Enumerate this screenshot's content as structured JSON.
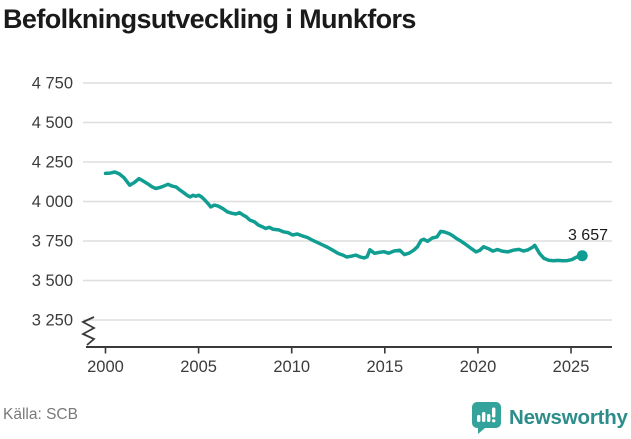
{
  "chart_data": {
    "type": "line",
    "title": "Befolkningsutveckling i Munkfors",
    "xlabel": "",
    "ylabel": "",
    "grid": true,
    "axis_break": true,
    "xlim": [
      1998.9,
      2027.2
    ],
    "ylim": [
      3250,
      4750
    ],
    "x_ticks": [
      2000,
      2005,
      2010,
      2015,
      2020,
      2025
    ],
    "y_ticks": [
      {
        "value": 4750,
        "label": "4 750"
      },
      {
        "value": 4500,
        "label": "4 500"
      },
      {
        "value": 4250,
        "label": "4 250"
      },
      {
        "value": 4000,
        "label": "4 000"
      },
      {
        "value": 3750,
        "label": "3 750"
      },
      {
        "value": 3500,
        "label": "3 500"
      },
      {
        "value": 3250,
        "label": "3 250"
      }
    ],
    "colors": {
      "line": "#119e92",
      "grid": "#dedede",
      "axis": "#3a3a3a",
      "tick_text": "#3c3c3c",
      "end_label_text": "#1a1a1a"
    },
    "series": [
      {
        "name": "Befolkning",
        "points": [
          [
            2000.0,
            4178
          ],
          [
            2000.25,
            4180
          ],
          [
            2000.5,
            4187
          ],
          [
            2000.75,
            4174
          ],
          [
            2001.0,
            4150
          ],
          [
            2001.3,
            4103
          ],
          [
            2001.55,
            4120
          ],
          [
            2001.8,
            4145
          ],
          [
            2002.0,
            4131
          ],
          [
            2002.25,
            4113
          ],
          [
            2002.5,
            4093
          ],
          [
            2002.7,
            4082
          ],
          [
            2002.9,
            4088
          ],
          [
            2003.1,
            4096
          ],
          [
            2003.35,
            4109
          ],
          [
            2003.6,
            4097
          ],
          [
            2003.8,
            4092
          ],
          [
            2004.0,
            4072
          ],
          [
            2004.2,
            4056
          ],
          [
            2004.4,
            4038
          ],
          [
            2004.55,
            4029
          ],
          [
            2004.7,
            4040
          ],
          [
            2004.85,
            4033
          ],
          [
            2005.0,
            4040
          ],
          [
            2005.15,
            4030
          ],
          [
            2005.3,
            4013
          ],
          [
            2005.5,
            3988
          ],
          [
            2005.65,
            3966
          ],
          [
            2005.85,
            3977
          ],
          [
            2006.05,
            3971
          ],
          [
            2006.3,
            3955
          ],
          [
            2006.55,
            3934
          ],
          [
            2006.8,
            3925
          ],
          [
            2007.0,
            3921
          ],
          [
            2007.2,
            3929
          ],
          [
            2007.4,
            3913
          ],
          [
            2007.55,
            3904
          ],
          [
            2007.75,
            3883
          ],
          [
            2008.0,
            3871
          ],
          [
            2008.2,
            3851
          ],
          [
            2008.4,
            3841
          ],
          [
            2008.6,
            3830
          ],
          [
            2008.8,
            3837
          ],
          [
            2009.0,
            3824
          ],
          [
            2009.3,
            3820
          ],
          [
            2009.55,
            3808
          ],
          [
            2009.8,
            3803
          ],
          [
            2010.05,
            3788
          ],
          [
            2010.3,
            3794
          ],
          [
            2010.6,
            3781
          ],
          [
            2010.85,
            3772
          ],
          [
            2011.1,
            3756
          ],
          [
            2011.4,
            3739
          ],
          [
            2011.7,
            3723
          ],
          [
            2011.95,
            3709
          ],
          [
            2012.2,
            3692
          ],
          [
            2012.5,
            3671
          ],
          [
            2012.75,
            3661
          ],
          [
            2012.95,
            3649
          ],
          [
            2013.2,
            3654
          ],
          [
            2013.45,
            3661
          ],
          [
            2013.7,
            3648
          ],
          [
            2013.9,
            3643
          ],
          [
            2014.05,
            3650
          ],
          [
            2014.2,
            3694
          ],
          [
            2014.45,
            3672
          ],
          [
            2014.7,
            3678
          ],
          [
            2014.95,
            3682
          ],
          [
            2015.2,
            3673
          ],
          [
            2015.5,
            3687
          ],
          [
            2015.8,
            3692
          ],
          [
            2016.05,
            3664
          ],
          [
            2016.3,
            3673
          ],
          [
            2016.55,
            3692
          ],
          [
            2016.75,
            3713
          ],
          [
            2016.95,
            3754
          ],
          [
            2017.1,
            3761
          ],
          [
            2017.3,
            3748
          ],
          [
            2017.55,
            3769
          ],
          [
            2017.8,
            3776
          ],
          [
            2018.0,
            3811
          ],
          [
            2018.2,
            3807
          ],
          [
            2018.45,
            3797
          ],
          [
            2018.65,
            3783
          ],
          [
            2018.85,
            3766
          ],
          [
            2019.1,
            3748
          ],
          [
            2019.4,
            3724
          ],
          [
            2019.65,
            3702
          ],
          [
            2019.9,
            3681
          ],
          [
            2020.1,
            3691
          ],
          [
            2020.3,
            3713
          ],
          [
            2020.55,
            3702
          ],
          [
            2020.8,
            3686
          ],
          [
            2021.05,
            3696
          ],
          [
            2021.3,
            3686
          ],
          [
            2021.6,
            3681
          ],
          [
            2021.9,
            3692
          ],
          [
            2022.2,
            3697
          ],
          [
            2022.45,
            3687
          ],
          [
            2022.7,
            3694
          ],
          [
            2022.95,
            3712
          ],
          [
            2023.05,
            3723
          ],
          [
            2023.3,
            3672
          ],
          [
            2023.55,
            3640
          ],
          [
            2023.8,
            3628
          ],
          [
            2024.05,
            3625
          ],
          [
            2024.3,
            3627
          ],
          [
            2024.55,
            3625
          ],
          [
            2024.8,
            3626
          ],
          [
            2025.05,
            3632
          ],
          [
            2025.3,
            3648
          ],
          [
            2025.6,
            3657
          ]
        ]
      }
    ],
    "end_point": {
      "x": 2025.6,
      "y": 3657,
      "label": "3 657"
    }
  },
  "footer": {
    "source": "Källa: SCB",
    "brand": "Newsworthy"
  }
}
